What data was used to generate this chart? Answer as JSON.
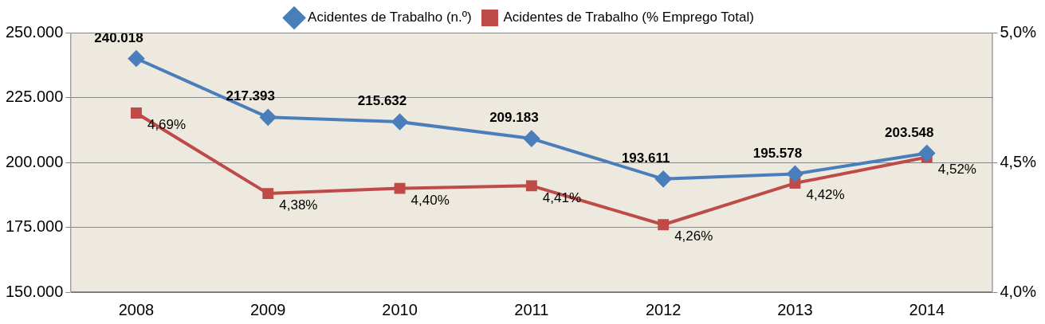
{
  "chart_data": {
    "type": "line",
    "categories": [
      "2008",
      "2009",
      "2010",
      "2011",
      "2012",
      "2013",
      "2014"
    ],
    "series": [
      {
        "name": "Acidentes de Trabalho (n.º)",
        "color": "#4a7ebb",
        "marker": "diamond",
        "values": [
          240018,
          217393,
          215632,
          209183,
          193611,
          195578,
          203548
        ],
        "value_labels": [
          "240.018",
          "217.393",
          "215.632",
          "209.183",
          "193.611",
          "195.578",
          "203.548"
        ]
      },
      {
        "name": "Acidentes de Trabalho (% Emprego Total)",
        "color": "#be4b48",
        "marker": "square",
        "axis": "y2",
        "values": [
          4.69,
          4.38,
          4.4,
          4.41,
          4.26,
          4.42,
          4.52
        ],
        "value_labels": [
          "4,69%",
          "4,38%",
          "4,40%",
          "4,41%",
          "4,26%",
          "4,42%",
          "4,52%"
        ]
      }
    ],
    "ylim": [
      150000,
      250000
    ],
    "yticks": [
      {
        "value": 150000,
        "label": "150.000"
      },
      {
        "value": 175000,
        "label": "175.000"
      },
      {
        "value": 200000,
        "label": "200.000"
      },
      {
        "value": 225000,
        "label": "225.000"
      },
      {
        "value": 250000,
        "label": "250.000"
      }
    ],
    "y2lim": [
      4.0,
      5.0
    ],
    "y2ticks": [
      {
        "value": 4.0,
        "label": "4,0%"
      },
      {
        "value": 4.5,
        "label": "4,5%"
      },
      {
        "value": 5.0,
        "label": "5,0%"
      }
    ],
    "grid": "y",
    "legend": "top",
    "line_style": "solid"
  }
}
